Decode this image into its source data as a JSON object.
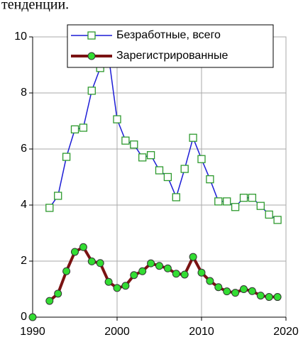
{
  "caption": "тенденции.",
  "chart_data": {
    "type": "line",
    "xlim": [
      1990,
      2020
    ],
    "xticks": [
      1990,
      2000,
      2010,
      2020
    ],
    "ylim": [
      0,
      10
    ],
    "yticks": [
      0,
      2,
      4,
      6,
      8,
      10
    ],
    "grid": true,
    "legend": "top",
    "series": [
      {
        "name": "Безработные, всего",
        "color": "#1c1cd6",
        "marker": "square",
        "marker_color": "#2e9a2e",
        "x": [
          1992,
          1993,
          1994,
          1995,
          1996,
          1997,
          1998,
          1999,
          2000,
          2001,
          2002,
          2003,
          2004,
          2005,
          2006,
          2007,
          2008,
          2009,
          2010,
          2011,
          2012,
          2013,
          2014,
          2015,
          2016,
          2017,
          2018,
          2019
        ],
        "values": [
          3.9,
          4.33,
          5.72,
          6.7,
          6.76,
          8.08,
          8.89,
          9.3,
          7.06,
          6.3,
          6.16,
          5.7,
          5.78,
          5.24,
          5.0,
          4.28,
          5.29,
          6.4,
          5.64,
          4.92,
          4.13,
          4.13,
          3.93,
          4.26,
          4.26,
          3.97,
          3.66,
          3.47
        ]
      },
      {
        "name": "Зарегистрированные",
        "color": "#7a1212",
        "marker": "circle",
        "marker_color": "#33dd33",
        "x": [
          1990,
          1991,
          1992,
          1993,
          1994,
          1995,
          1996,
          1997,
          1998,
          1999,
          2000,
          2001,
          2002,
          2003,
          2004,
          2005,
          2006,
          2007,
          2008,
          2009,
          2010,
          2011,
          2012,
          2013,
          2014,
          2015,
          2016,
          2017,
          2018,
          2019
        ],
        "values": [
          0,
          null,
          0.58,
          0.84,
          1.64,
          2.33,
          2.5,
          1.99,
          1.93,
          1.26,
          1.04,
          1.12,
          1.5,
          1.64,
          1.92,
          1.83,
          1.74,
          1.55,
          1.52,
          2.15,
          1.59,
          1.29,
          1.07,
          0.92,
          0.87,
          1.0,
          0.93,
          0.77,
          0.72,
          0.72
        ]
      }
    ]
  }
}
